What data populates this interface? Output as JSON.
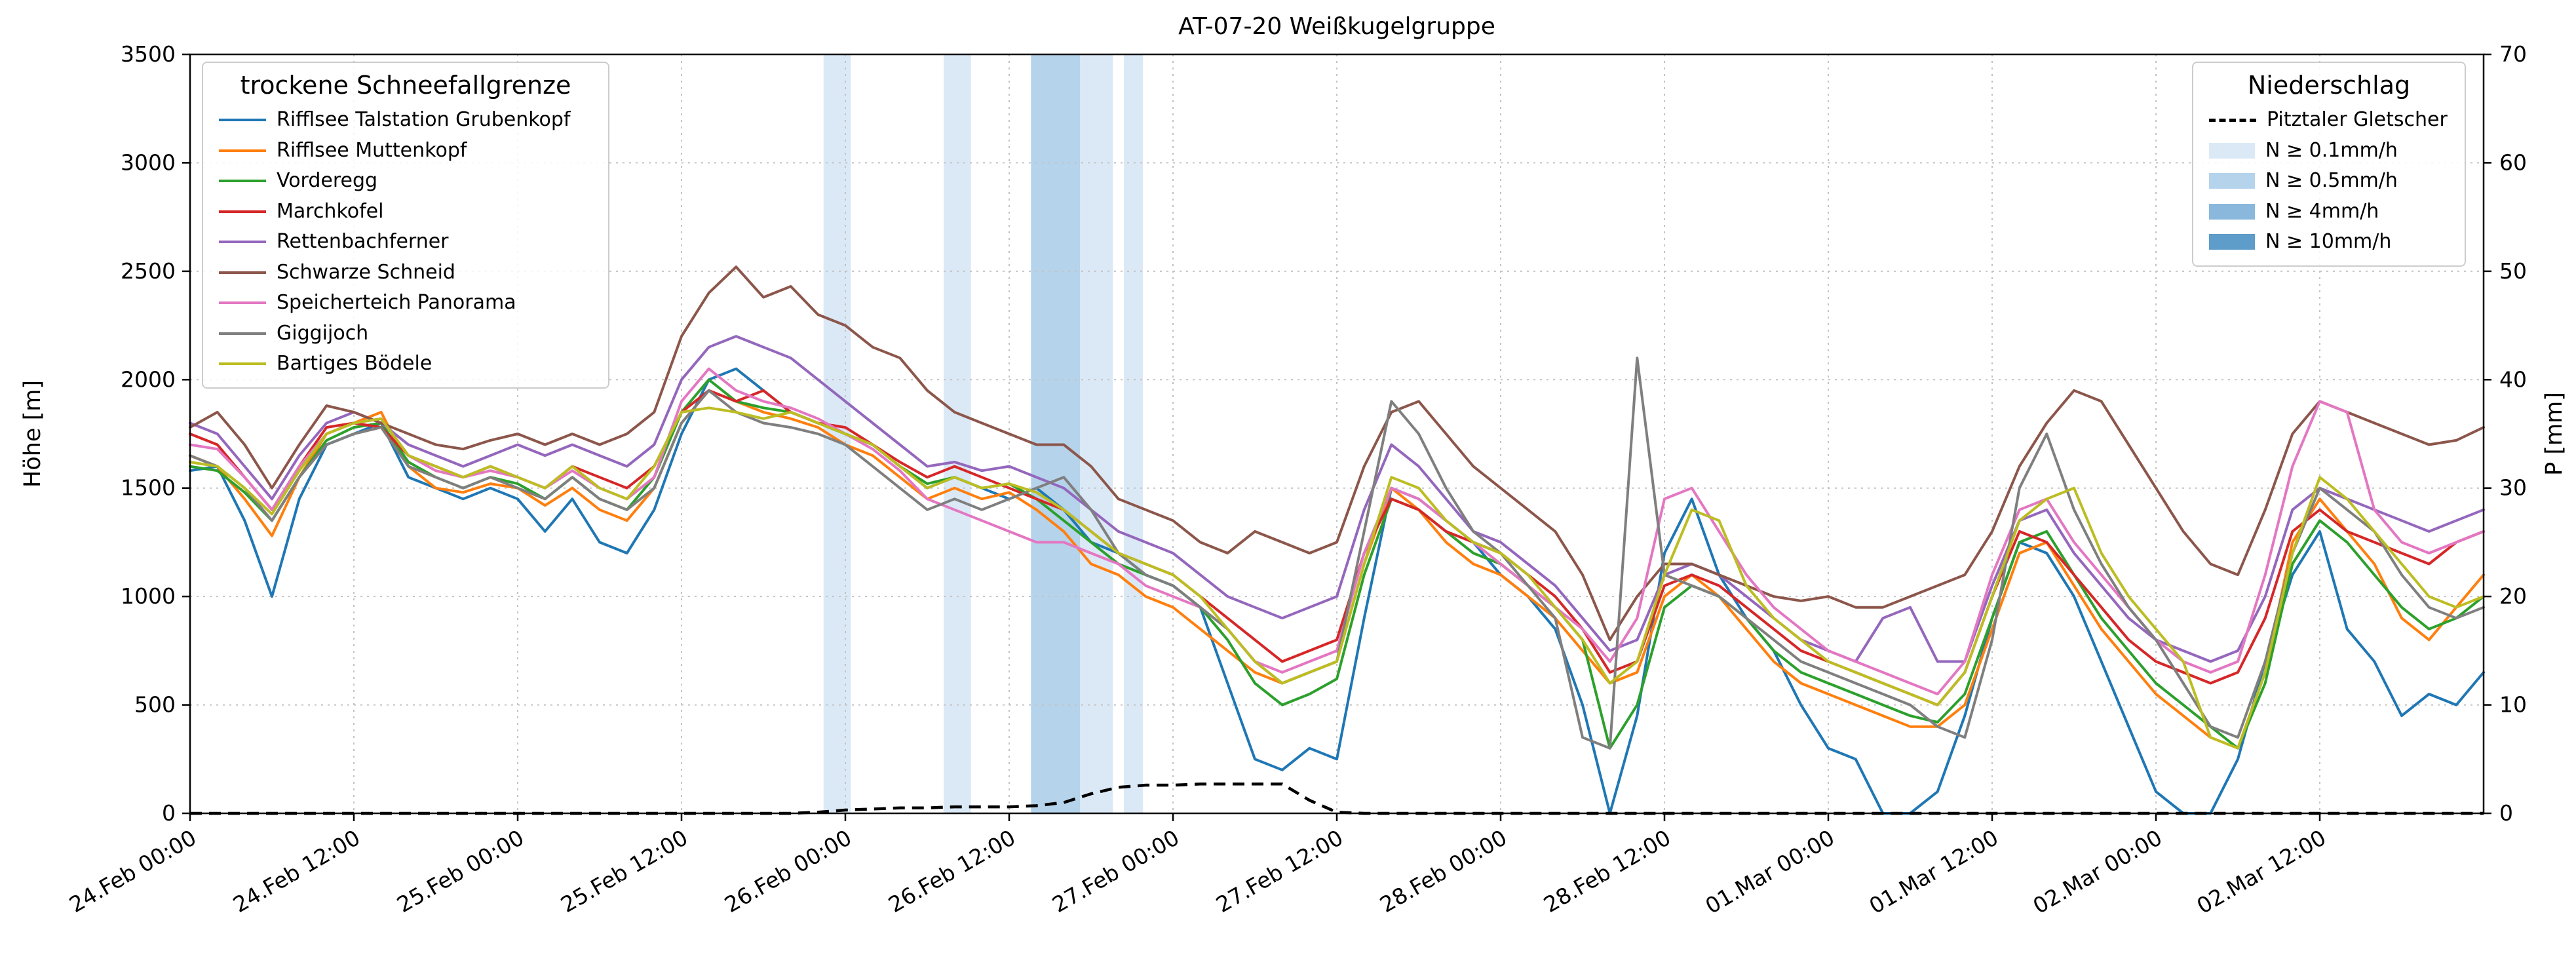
{
  "legend_snowline": {
    "title": "trockene Schneefallgrenze"
  },
  "legend_precip": {
    "title": "Niederschlag",
    "line_label": "Pitztaler Gletscher",
    "levels": [
      {
        "label": "N ≥ 0.1mm/h",
        "color": "#dbe9f6"
      },
      {
        "label": "N ≥ 0.5mm/h",
        "color": "#b5d3eb"
      },
      {
        "label": "N ≥ 4mm/h",
        "color": "#89b8dc"
      },
      {
        "label": "N ≥ 10mm/h",
        "color": "#5e9cc9"
      }
    ]
  },
  "chart_data": {
    "type": "line",
    "title": "AT-07-20 Weißkugelgruppe",
    "ylabel_left": "Höhe [m]",
    "ylabel_right": "P [mm]",
    "ylim_left": [
      0,
      3500
    ],
    "ylim_right": [
      0,
      70
    ],
    "yticks_left": [
      0,
      500,
      1000,
      1500,
      2000,
      2500,
      3000,
      3500
    ],
    "yticks_right": [
      0,
      10,
      20,
      30,
      40,
      50,
      60,
      70
    ],
    "grid": true,
    "x_unit": "hours since 24.Feb 00:00",
    "xlim_hours": [
      0,
      168
    ],
    "xtick_hours": [
      0,
      12,
      24,
      36,
      48,
      60,
      72,
      84,
      96,
      108,
      120,
      132,
      144,
      156
    ],
    "xtick_labels": [
      "24.Feb 00:00",
      "24.Feb 12:00",
      "25.Feb 00:00",
      "25.Feb 12:00",
      "26.Feb 00:00",
      "26.Feb 12:00",
      "27.Feb 00:00",
      "27.Feb 12:00",
      "28.Feb 00:00",
      "28.Feb 12:00",
      "01.Mar 00:00",
      "01.Mar 12:00",
      "02.Mar 00:00",
      "02.Mar 12:00"
    ],
    "x_hours": [
      0,
      2,
      4,
      6,
      8,
      10,
      12,
      14,
      16,
      18,
      20,
      22,
      24,
      26,
      28,
      30,
      32,
      34,
      36,
      38,
      40,
      42,
      44,
      46,
      48,
      50,
      52,
      54,
      56,
      58,
      60,
      62,
      64,
      66,
      68,
      70,
      72,
      74,
      76,
      78,
      80,
      82,
      84,
      86,
      88,
      90,
      92,
      94,
      96,
      98,
      100,
      102,
      104,
      106,
      108,
      110,
      112,
      114,
      116,
      118,
      120,
      122,
      124,
      126,
      128,
      130,
      132,
      134,
      136,
      138,
      140,
      142,
      144,
      146,
      148,
      150,
      152,
      154,
      156,
      158,
      160,
      162,
      164,
      166,
      168
    ],
    "series": [
      {
        "name": "Rifflsee Talstation Grubenkopf",
        "color": "#1f77b4",
        "values": [
          1580,
          1600,
          1350,
          1000,
          1450,
          1700,
          1750,
          1800,
          1550,
          1500,
          1450,
          1500,
          1450,
          1300,
          1450,
          1250,
          1200,
          1400,
          1750,
          2000,
          2050,
          1950,
          1850,
          1800,
          1750,
          1700,
          1600,
          1500,
          1550,
          1500,
          1450,
          1500,
          1400,
          1250,
          1200,
          1100,
          1050,
          950,
          600,
          250,
          200,
          300,
          250,
          900,
          1500,
          1450,
          1350,
          1250,
          1100,
          1000,
          850,
          500,
          0,
          450,
          1200,
          1450,
          1100,
          900,
          750,
          500,
          300,
          250,
          0,
          0,
          100,
          450,
          900,
          1250,
          1200,
          1000,
          700,
          400,
          100,
          0,
          0,
          250,
          700,
          1100,
          1300,
          850,
          700,
          450,
          550,
          500,
          650
        ]
      },
      {
        "name": "Rifflsee Muttenkopf",
        "color": "#ff7f0e",
        "values": [
          1650,
          1600,
          1450,
          1280,
          1550,
          1750,
          1800,
          1850,
          1600,
          1500,
          1480,
          1520,
          1500,
          1420,
          1500,
          1400,
          1350,
          1500,
          1800,
          1950,
          1900,
          1850,
          1820,
          1780,
          1700,
          1650,
          1550,
          1450,
          1500,
          1450,
          1480,
          1400,
          1300,
          1150,
          1100,
          1000,
          950,
          850,
          750,
          650,
          600,
          650,
          700,
          1150,
          1500,
          1400,
          1250,
          1150,
          1100,
          1000,
          900,
          750,
          600,
          650,
          1000,
          1100,
          1000,
          850,
          700,
          600,
          550,
          500,
          450,
          400,
          400,
          500,
          850,
          1200,
          1250,
          1050,
          850,
          700,
          550,
          450,
          350,
          300,
          650,
          1250,
          1450,
          1300,
          1150,
          900,
          800,
          950,
          1100
        ]
      },
      {
        "name": "Vorderegg",
        "color": "#2ca02c",
        "values": [
          1600,
          1580,
          1480,
          1350,
          1550,
          1720,
          1780,
          1800,
          1620,
          1550,
          1500,
          1550,
          1520,
          1450,
          1550,
          1450,
          1400,
          1550,
          1850,
          2000,
          1900,
          1870,
          1850,
          1800,
          1750,
          1700,
          1600,
          1520,
          1550,
          1500,
          1520,
          1450,
          1350,
          1250,
          1150,
          1100,
          1050,
          950,
          800,
          600,
          500,
          550,
          620,
          1100,
          1450,
          1400,
          1300,
          1200,
          1150,
          1050,
          950,
          800,
          300,
          500,
          950,
          1050,
          1000,
          900,
          750,
          650,
          600,
          550,
          500,
          450,
          420,
          550,
          900,
          1250,
          1300,
          1100,
          900,
          750,
          600,
          500,
          400,
          300,
          600,
          1150,
          1350,
          1250,
          1100,
          950,
          850,
          900,
          1000
        ]
      },
      {
        "name": "Marchkofel",
        "color": "#d62728",
        "values": [
          1750,
          1700,
          1550,
          1400,
          1600,
          1780,
          1800,
          1780,
          1650,
          1600,
          1550,
          1600,
          1550,
          1500,
          1600,
          1550,
          1500,
          1600,
          1850,
          1950,
          1900,
          1950,
          1850,
          1800,
          1780,
          1700,
          1620,
          1550,
          1600,
          1550,
          1500,
          1450,
          1400,
          1300,
          1200,
          1150,
          1100,
          1000,
          900,
          800,
          700,
          750,
          800,
          1200,
          1450,
          1400,
          1300,
          1250,
          1200,
          1100,
          1000,
          850,
          650,
          700,
          1050,
          1100,
          1050,
          950,
          850,
          750,
          700,
          650,
          600,
          550,
          500,
          650,
          1000,
          1300,
          1250,
          1100,
          950,
          800,
          700,
          650,
          600,
          650,
          900,
          1300,
          1400,
          1300,
          1250,
          1200,
          1150,
          1250,
          1300
        ]
      },
      {
        "name": "Rettenbachferner",
        "color": "#9467bd",
        "values": [
          1800,
          1750,
          1600,
          1450,
          1650,
          1800,
          1850,
          1800,
          1700,
          1650,
          1600,
          1650,
          1700,
          1650,
          1700,
          1650,
          1600,
          1700,
          2000,
          2150,
          2200,
          2150,
          2100,
          2000,
          1900,
          1800,
          1700,
          1600,
          1620,
          1580,
          1600,
          1550,
          1500,
          1400,
          1300,
          1250,
          1200,
          1100,
          1000,
          950,
          900,
          950,
          1000,
          1400,
          1700,
          1600,
          1450,
          1300,
          1250,
          1150,
          1050,
          900,
          750,
          800,
          1100,
          1150,
          1100,
          1000,
          900,
          800,
          750,
          700,
          900,
          950,
          700,
          700,
          1050,
          1350,
          1400,
          1200,
          1050,
          900,
          800,
          750,
          700,
          750,
          1000,
          1400,
          1500,
          1450,
          1400,
          1350,
          1300,
          1350,
          1400
        ]
      },
      {
        "name": "Schwarze Schneid",
        "color": "#8c564b",
        "values": [
          1780,
          1850,
          1700,
          1500,
          1700,
          1880,
          1850,
          1800,
          1750,
          1700,
          1680,
          1720,
          1750,
          1700,
          1750,
          1700,
          1750,
          1850,
          2200,
          2400,
          2520,
          2380,
          2430,
          2300,
          2250,
          2150,
          2100,
          1950,
          1850,
          1800,
          1750,
          1700,
          1700,
          1600,
          1450,
          1400,
          1350,
          1250,
          1200,
          1300,
          1250,
          1200,
          1250,
          1600,
          1850,
          1900,
          1750,
          1600,
          1500,
          1400,
          1300,
          1100,
          800,
          1000,
          1150,
          1150,
          1100,
          1050,
          1000,
          980,
          1000,
          950,
          950,
          1000,
          1050,
          1100,
          1300,
          1600,
          1800,
          1950,
          1900,
          1700,
          1500,
          1300,
          1150,
          1100,
          1400,
          1750,
          1900,
          1850,
          1800,
          1750,
          1700,
          1720,
          1780
        ]
      },
      {
        "name": "Speicherteich Panorama",
        "color": "#e377c2",
        "values": [
          1700,
          1680,
          1550,
          1400,
          1600,
          1750,
          1800,
          1820,
          1650,
          1580,
          1550,
          1580,
          1550,
          1500,
          1580,
          1500,
          1450,
          1550,
          1900,
          2050,
          1950,
          1900,
          1870,
          1820,
          1750,
          1680,
          1580,
          1450,
          1400,
          1350,
          1300,
          1250,
          1250,
          1200,
          1150,
          1050,
          1000,
          950,
          850,
          700,
          650,
          700,
          750,
          1200,
          1500,
          1450,
          1350,
          1250,
          1150,
          1050,
          950,
          850,
          700,
          900,
          1450,
          1500,
          1300,
          1100,
          950,
          850,
          750,
          700,
          650,
          600,
          550,
          700,
          1100,
          1400,
          1450,
          1250,
          1100,
          950,
          800,
          700,
          650,
          700,
          1100,
          1600,
          1900,
          1850,
          1400,
          1250,
          1200,
          1250,
          1300
        ]
      },
      {
        "name": "Giggijoch",
        "color": "#7f7f7f",
        "values": [
          1650,
          1600,
          1500,
          1350,
          1550,
          1700,
          1750,
          1780,
          1600,
          1550,
          1500,
          1550,
          1500,
          1450,
          1550,
          1450,
          1400,
          1500,
          1800,
          1950,
          1850,
          1800,
          1780,
          1750,
          1700,
          1600,
          1500,
          1400,
          1450,
          1400,
          1450,
          1500,
          1550,
          1400,
          1200,
          1100,
          1050,
          950,
          850,
          700,
          600,
          650,
          700,
          1300,
          1900,
          1750,
          1500,
          1300,
          1200,
          1050,
          900,
          350,
          300,
          2100,
          1100,
          1050,
          1000,
          900,
          800,
          700,
          650,
          600,
          550,
          500,
          400,
          350,
          800,
          1500,
          1750,
          1400,
          1150,
          950,
          800,
          600,
          400,
          350,
          700,
          1200,
          1500,
          1400,
          1300,
          1100,
          950,
          900,
          950
        ]
      },
      {
        "name": "Bartiges Bödele",
        "color": "#bcbd22",
        "values": [
          1620,
          1600,
          1500,
          1380,
          1580,
          1750,
          1800,
          1820,
          1650,
          1600,
          1550,
          1600,
          1550,
          1500,
          1600,
          1500,
          1450,
          1600,
          1850,
          1870,
          1850,
          1820,
          1850,
          1800,
          1750,
          1700,
          1600,
          1500,
          1550,
          1500,
          1520,
          1480,
          1400,
          1300,
          1200,
          1150,
          1100,
          1000,
          850,
          700,
          600,
          650,
          700,
          1150,
          1550,
          1500,
          1350,
          1250,
          1200,
          1100,
          950,
          800,
          600,
          700,
          1100,
          1400,
          1350,
          1050,
          900,
          800,
          700,
          650,
          600,
          550,
          500,
          650,
          1000,
          1350,
          1450,
          1500,
          1200,
          1000,
          850,
          700,
          350,
          300,
          650,
          1200,
          1550,
          1450,
          1300,
          1150,
          1000,
          950,
          1000
        ]
      }
    ],
    "precip_line": {
      "name": "Pitztaler Gletscher",
      "color": "#000000",
      "style": "dashed",
      "axis": "right",
      "unit": "mm",
      "values": [
        0,
        0,
        0,
        0,
        0,
        0,
        0,
        0,
        0,
        0,
        0,
        0,
        0,
        0,
        0,
        0,
        0,
        0,
        0,
        0,
        0,
        0,
        0,
        0.1,
        0.3,
        0.4,
        0.5,
        0.5,
        0.6,
        0.6,
        0.6,
        0.7,
        1.0,
        1.8,
        2.4,
        2.6,
        2.6,
        2.7,
        2.7,
        2.7,
        2.7,
        1.2,
        0.1,
        0,
        0,
        0,
        0,
        0,
        0,
        0,
        0,
        0,
        0,
        0,
        0,
        0,
        0,
        0,
        0,
        0,
        0,
        0,
        0,
        0,
        0,
        0,
        0,
        0,
        0,
        0,
        0,
        0,
        0,
        0,
        0,
        0,
        0,
        0,
        0,
        0,
        0,
        0,
        0,
        0,
        0
      ]
    },
    "precip_bands": [
      {
        "start_hour": 46.4,
        "end_hour": 48.4,
        "level_index": 0
      },
      {
        "start_hour": 55.2,
        "end_hour": 57.2,
        "level_index": 0
      },
      {
        "start_hour": 61.6,
        "end_hour": 63,
        "level_index": 1
      },
      {
        "start_hour": 63,
        "end_hour": 65.2,
        "level_index": 1
      },
      {
        "start_hour": 65.2,
        "end_hour": 67.6,
        "level_index": 0
      },
      {
        "start_hour": 68.4,
        "end_hour": 69.8,
        "level_index": 0
      }
    ]
  }
}
